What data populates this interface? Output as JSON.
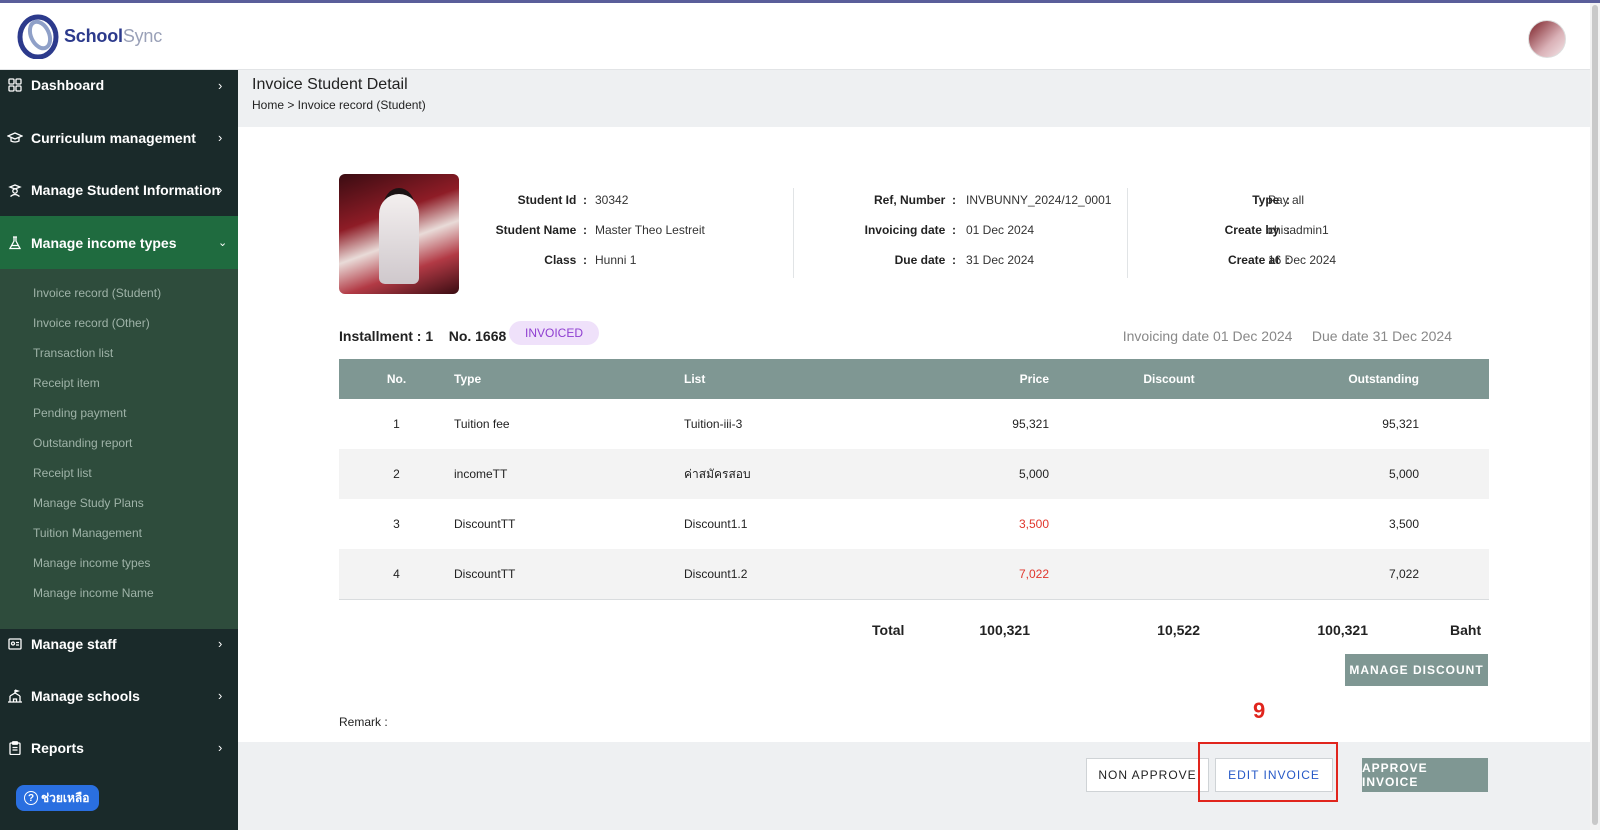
{
  "brand": {
    "name_primary": "School",
    "name_secondary": "Sync"
  },
  "sidebar": {
    "items": [
      {
        "label": "Dashboard",
        "icon": "grid-icon"
      },
      {
        "label": "Curriculum management",
        "icon": "graduation-cap-icon"
      },
      {
        "label": "Manage Student Information",
        "icon": "student-icon"
      },
      {
        "label": "Manage income types",
        "icon": "flask-icon"
      },
      {
        "label": "Manage staff",
        "icon": "id-card-icon"
      },
      {
        "label": "Manage schools",
        "icon": "school-icon"
      },
      {
        "label": "Reports",
        "icon": "clipboard-icon"
      }
    ],
    "submenu": [
      "Invoice record (Student)",
      "Invoice record (Other)",
      "Transaction list",
      "Receipt item",
      "Pending payment",
      "Outstanding report",
      "Receipt list",
      "Manage Study Plans",
      "Tuition Management",
      "Manage income types",
      "Manage income Name"
    ],
    "help_label": "ช่วยเหลือ"
  },
  "page": {
    "title": "Invoice Student Detail",
    "breadcrumb": "Home > Invoice record (Student)"
  },
  "student": {
    "labels": {
      "id": "Student Id",
      "name": "Student Name",
      "class": "Class"
    },
    "id": "30342",
    "name": "Master Theo Lestreit",
    "class": "Hunni 1"
  },
  "invoice_meta": {
    "labels": {
      "ref": "Ref, Number",
      "invoicing_date": "Invoicing date",
      "due_date": "Due date"
    },
    "ref": "INVBUNNY_2024/12_0001",
    "invoicing_date": "01 Dec 2024",
    "due_date": "31 Dec 2024"
  },
  "record_meta": {
    "labels": {
      "type": "Type",
      "create_by": "Create by",
      "create_at": "Create at"
    },
    "type": "Pay all",
    "create_by": "chisadmin1",
    "create_at": "16 Dec 2024"
  },
  "installment": {
    "label": "Installment : 1",
    "number": "No. 1668",
    "status": "INVOICED",
    "invoicing_date": "Invoicing date 01 Dec 2024",
    "due_date": "Due date 31 Dec 2024"
  },
  "table": {
    "headers": {
      "no": "No.",
      "type": "Type",
      "list": "List",
      "price": "Price",
      "discount": "Discount",
      "outstanding": "Outstanding"
    },
    "rows": [
      {
        "no": "1",
        "type": "Tuition fee",
        "list": "Tuition-iii-3",
        "price": "95,321",
        "discount": "",
        "outstanding": "95,321",
        "price_color": "#222222"
      },
      {
        "no": "2",
        "type": "incomeTT",
        "list": "ค่าสมัครสอบ",
        "price": "5,000",
        "discount": "",
        "outstanding": "5,000",
        "price_color": "#222222"
      },
      {
        "no": "3",
        "type": "DiscountTT",
        "list": "Discount1.1",
        "price": "3,500",
        "discount": "",
        "outstanding": "3,500",
        "price_color": "#e0362c"
      },
      {
        "no": "4",
        "type": "DiscountTT",
        "list": "Discount1.2",
        "price": "7,022",
        "discount": "",
        "outstanding": "7,022",
        "price_color": "#e0362c"
      }
    ],
    "total": {
      "label": "Total",
      "price": "100,321",
      "discount": "10,522",
      "outstanding": "100,321",
      "unit": "Baht"
    }
  },
  "buttons": {
    "manage_discount": "MANAGE DISCOUNT",
    "non_approve": "NON APPROVE",
    "edit_invoice": "EDIT INVOICE",
    "approve_invoice": "APPROVE INVOICE"
  },
  "remark_label": "Remark :",
  "step_marker": "9",
  "colors": {
    "sidebar_bg": "#1a2a2a",
    "sidebar_active": "#1f6b3f",
    "table_header": "#7f9793",
    "badge_bg": "#efe1fa",
    "badge_text": "#8f3ed1",
    "highlight": "#e0251d"
  }
}
